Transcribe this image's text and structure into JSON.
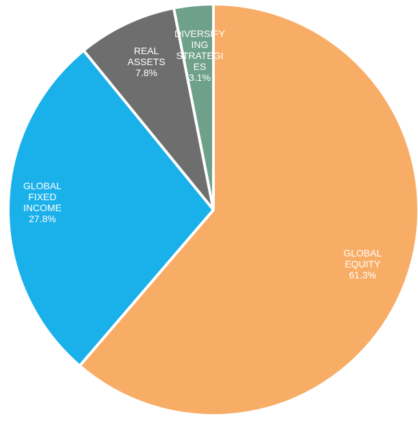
{
  "chart_data": {
    "type": "pie",
    "slices": [
      {
        "label_lines": [
          "GLOBAL",
          "EQUITY",
          "61.3%"
        ],
        "value": 61.3,
        "color": "#F8AD66"
      },
      {
        "label_lines": [
          "GLOBAL",
          "FIXED",
          "INCOME",
          "27.8%"
        ],
        "value": 27.8,
        "color": "#1AB0EA"
      },
      {
        "label_lines": [
          "REAL",
          "ASSETS",
          "7.8%"
        ],
        "value": 7.8,
        "color": "#6E6E6E"
      },
      {
        "label_lines": [
          "DIVERSIFY",
          "ING",
          "STRATEGI",
          "ES",
          "3.1%"
        ],
        "value": 3.1,
        "color": "#6FA08A"
      }
    ]
  }
}
